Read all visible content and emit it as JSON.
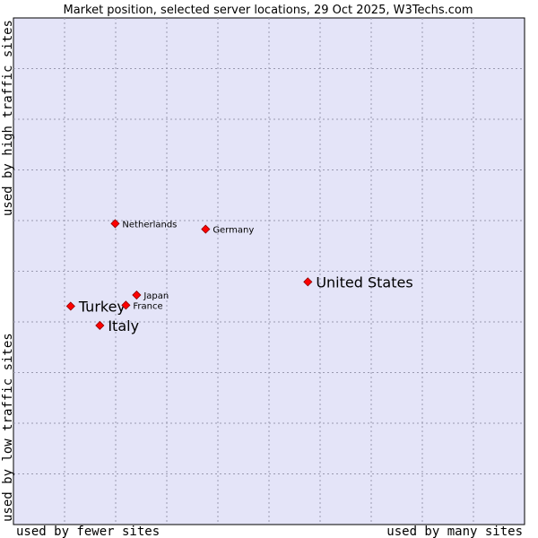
{
  "chart_data": {
    "type": "scatter",
    "title": "Market position, selected server locations, 29 Oct 2025, W3Techs.com",
    "xlabel_left": "used by fewer sites",
    "xlabel_right": "used by many sites",
    "ylabel_bottom": "used by low traffic sites",
    "ylabel_top": "used by high traffic sites",
    "xlim": [
      0,
      100
    ],
    "ylim": [
      0,
      100
    ],
    "grid": true,
    "colors": {
      "plot_background": "#e4e4f8",
      "grid": "#9a9ab0",
      "marker": "#ff0000",
      "marker_edge": "#8b0000"
    },
    "points": [
      {
        "name": "United States",
        "x": 57.6,
        "y": 47.9,
        "emphasis": true
      },
      {
        "name": "Turkey",
        "x": 11.2,
        "y": 43.1,
        "emphasis": true
      },
      {
        "name": "Italy",
        "x": 16.9,
        "y": 39.3,
        "emphasis": true
      },
      {
        "name": "Netherlands",
        "x": 19.9,
        "y": 59.4,
        "emphasis": false
      },
      {
        "name": "Germany",
        "x": 37.6,
        "y": 58.3,
        "emphasis": false
      },
      {
        "name": "Japan",
        "x": 24.1,
        "y": 45.3,
        "emphasis": false
      },
      {
        "name": "France",
        "x": 22.0,
        "y": 43.3,
        "emphasis": false
      }
    ]
  }
}
